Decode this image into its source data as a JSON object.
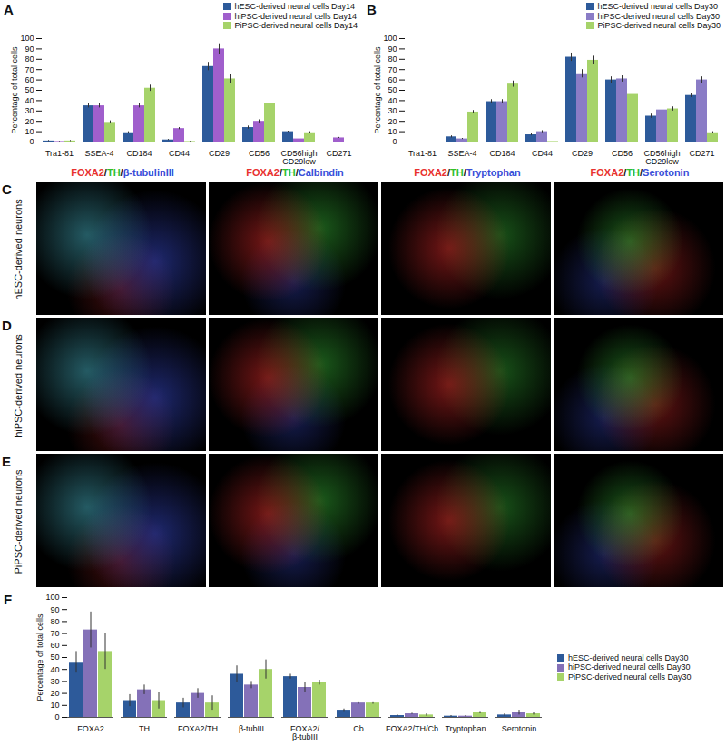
{
  "chart_data": [
    {
      "type": "bar",
      "title": "A",
      "y_label": "Percentage of total cells",
      "legend": "top",
      "categories": [
        "Tra1-81",
        "SSEA-4",
        "CD184",
        "CD44",
        "CD29",
        "CD56",
        "CD56high CD29low",
        "CD271"
      ],
      "series": [
        {
          "name": "hESC-derived neural cells Day14",
          "color": "#2d5a9a",
          "values": [
            1,
            35,
            9,
            2,
            73,
            14,
            10,
            0
          ],
          "errors": [
            0.5,
            2,
            1,
            0.5,
            4,
            1.5,
            0.5,
            0
          ]
        },
        {
          "name": "hiPSC-derived neural cells Day14",
          "color": "#a05fcc",
          "values": [
            0.5,
            35,
            35,
            13,
            90,
            20,
            3,
            4
          ],
          "errors": [
            0.3,
            2,
            2,
            1,
            5,
            1.5,
            0.5,
            0.5
          ]
        },
        {
          "name": "PiPSC-derived neural cells Day14",
          "color": "#a6d36a",
          "values": [
            1,
            19,
            52,
            0.5,
            61,
            37,
            9,
            0
          ],
          "errors": [
            0.5,
            1.5,
            3,
            0.3,
            4,
            2.5,
            1,
            0
          ]
        }
      ],
      "ylim": [
        0,
        100
      ],
      "yticks": [
        0,
        10,
        20,
        30,
        40,
        50,
        60,
        70,
        80,
        90,
        100
      ]
    },
    {
      "type": "bar",
      "title": "B",
      "y_label": "Percentage of total cells",
      "legend": "top",
      "categories": [
        "Tra1-81",
        "SSEA-4",
        "CD184",
        "CD44",
        "CD29",
        "CD56",
        "CD56high CD29low",
        "CD271"
      ],
      "series": [
        {
          "name": "hESC-derived neural cells Day30",
          "color": "#2d5a9a",
          "values": [
            0,
            5,
            39,
            7,
            82,
            60,
            25,
            45
          ],
          "errors": [
            0,
            1,
            2,
            1,
            4,
            3,
            2,
            2
          ]
        },
        {
          "name": "hiPSC-derived neural cells Day30",
          "color": "#8a7cc6",
          "values": [
            0,
            3,
            39,
            10,
            66,
            61,
            31,
            60
          ],
          "errors": [
            0,
            0.5,
            2,
            1,
            4,
            3,
            2,
            3
          ]
        },
        {
          "name": "PiPSC-derived neural cells Day30",
          "color": "#a6d36a",
          "values": [
            0,
            29,
            56,
            0.5,
            79,
            46,
            32,
            9
          ],
          "errors": [
            0,
            1.5,
            3,
            0,
            4,
            3,
            2,
            1
          ]
        }
      ],
      "ylim": [
        0,
        100
      ],
      "yticks": [
        0,
        10,
        20,
        30,
        40,
        50,
        60,
        70,
        80,
        90,
        100
      ]
    },
    {
      "type": "bar",
      "title": "F",
      "y_label": "Percentage of total cells",
      "legend": "right",
      "categories": [
        "FOXA2",
        "TH",
        "FOXA2/TH",
        "β-tubIII",
        "FOXA2/ β-tubIII",
        "Cb",
        "FOXA2/TH/Cb",
        "Tryptophan",
        "Serotonin"
      ],
      "series": [
        {
          "name": "hESC-derived neural cells Day30",
          "color": "#2d5a9a",
          "values": [
            46,
            14,
            12,
            36,
            34,
            6,
            1.5,
            1,
            2
          ],
          "errors": [
            9,
            5,
            4,
            7,
            2,
            1,
            0.5,
            0.5,
            1
          ]
        },
        {
          "name": "hiPSC-derived neural cells Day30",
          "color": "#8471b8",
          "values": [
            73,
            23,
            20,
            27,
            25,
            12,
            3,
            1,
            4
          ],
          "errors": [
            15,
            4,
            4,
            3,
            4,
            1,
            0.5,
            0.5,
            2
          ]
        },
        {
          "name": "PiPSC-derived neural cells Day30",
          "color": "#a6d36a",
          "values": [
            55,
            14,
            12,
            40,
            29,
            12,
            2,
            4,
            3
          ],
          "errors": [
            15,
            7,
            6,
            8,
            2,
            1,
            1,
            1,
            1
          ]
        }
      ],
      "ylim": [
        0,
        100
      ],
      "yticks": [
        0,
        10,
        20,
        30,
        40,
        50,
        60,
        70,
        80,
        90,
        100
      ]
    }
  ],
  "image_panels": {
    "letters": [
      "C",
      "D",
      "E"
    ],
    "rows": [
      "hESC-derived neurons",
      "hiPSC-derived neurons",
      "PiPSC-derived neurons"
    ],
    "columns": [
      "FOXA2/TH/β-tubulinIII",
      "FOXA2/TH/Calbindin",
      "FOXA2/TH/Tryptophan",
      "FOXA2/TH/Serotonin"
    ]
  }
}
